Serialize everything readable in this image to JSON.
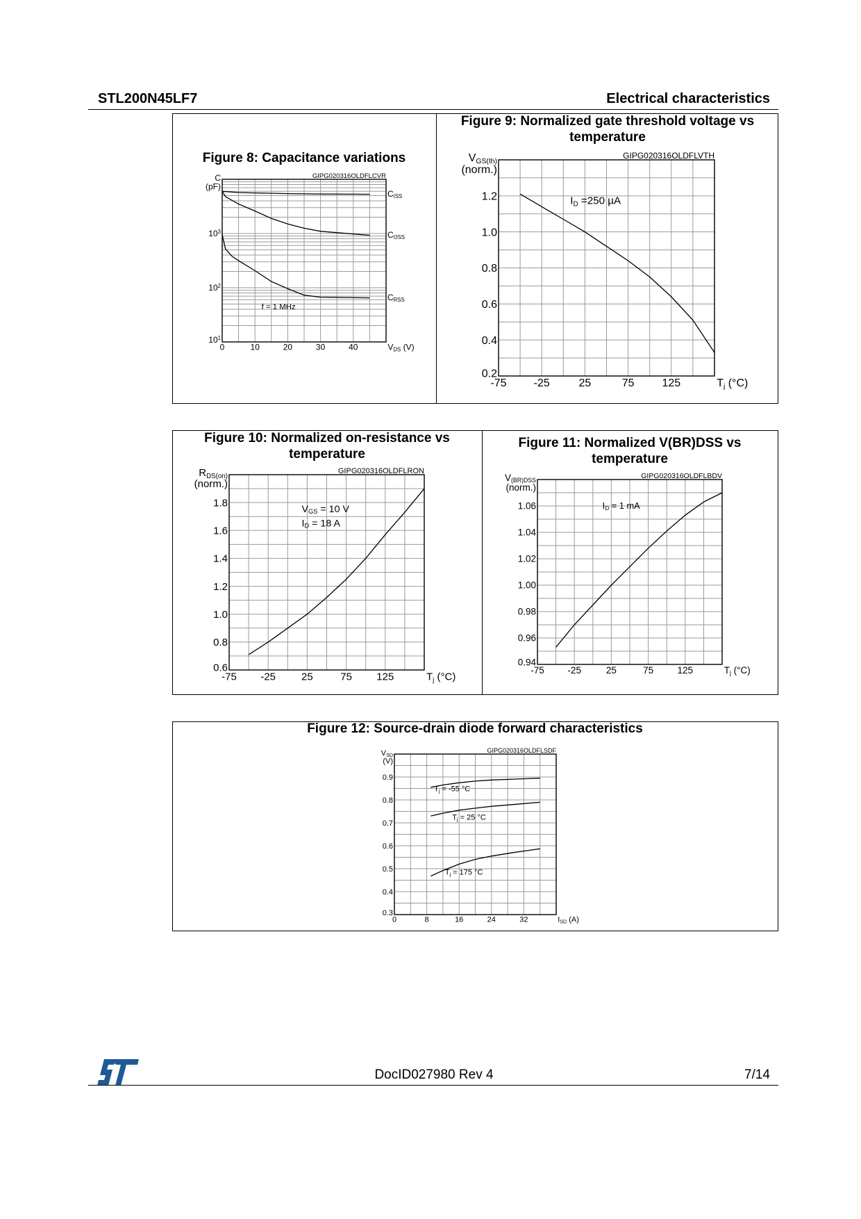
{
  "header": {
    "part_number": "STL200N45LF7",
    "section": "Electrical characteristics"
  },
  "footer": {
    "doc_id": "DocID027980 Rev 4",
    "page": "7/14",
    "logo_text": "ST",
    "brand_color": "#1e5b96"
  },
  "chart_data": [
    {
      "id": "fig8",
      "type": "line",
      "title": "Figure 8: Capacitance variations",
      "code": "GIPG020316OLDFLCVR",
      "xlabel": "V_{DS} (V)",
      "ylabel": [
        "C",
        "(pF)"
      ],
      "xlim": [
        0,
        50
      ],
      "ylim": [
        10,
        10000
      ],
      "yscale": "log",
      "grid": true,
      "xticks": [
        0,
        10,
        20,
        30,
        40
      ],
      "xtick_labels": [
        "0",
        "10",
        "20",
        "30",
        "40"
      ],
      "yticks": [
        10,
        100,
        1000
      ],
      "ytick_labels": [
        "10^{1}",
        "10^{2}",
        "10^{3}"
      ],
      "annotations": [
        "f = 1 MHz"
      ],
      "series": [
        {
          "name": "C_{ISS}",
          "x": [
            0,
            5,
            10,
            20,
            30,
            45
          ],
          "y": [
            6000,
            5700,
            5600,
            5450,
            5350,
            5300
          ]
        },
        {
          "name": "C_{OSS}",
          "x": [
            0,
            1,
            5,
            10,
            15,
            20,
            25,
            30,
            40,
            45
          ],
          "y": [
            6000,
            4800,
            3500,
            2600,
            1900,
            1500,
            1250,
            1100,
            980,
            930
          ]
        },
        {
          "name": "C_{RSS}",
          "x": [
            0,
            0.5,
            1,
            3,
            5,
            10,
            15,
            20,
            25,
            30,
            45
          ],
          "y": [
            950,
            700,
            520,
            380,
            315,
            206,
            130,
            96,
            73,
            67,
            65
          ]
        }
      ]
    },
    {
      "id": "fig9",
      "type": "line",
      "title": "Figure 9: Normalized gate threshold voltage vs temperature",
      "code": "GIPG020316OLDFLVTH",
      "xlabel": "T_{j} (°C)",
      "ylabel": [
        "V_{GS(th)}",
        "(norm.)"
      ],
      "xlim": [
        -75,
        175
      ],
      "ylim": [
        0.2,
        1.4
      ],
      "grid": true,
      "xticks": [
        -75,
        -25,
        25,
        75,
        125
      ],
      "xtick_labels": [
        "-75",
        "-25",
        "25",
        "75",
        "125"
      ],
      "yticks": [
        0.2,
        0.4,
        0.6,
        0.8,
        1.0,
        1.2
      ],
      "ytick_labels": [
        "0.2",
        "0.4",
        "0.6",
        "0.8",
        "1.0",
        "1.2"
      ],
      "annotations": [
        "I_{D} =250 µA"
      ],
      "series": [
        {
          "name": "ID=250µA",
          "x": [
            -50,
            -25,
            0,
            25,
            50,
            75,
            100,
            125,
            150,
            175
          ],
          "y": [
            1.21,
            1.14,
            1.07,
            1.0,
            0.92,
            0.84,
            0.75,
            0.64,
            0.51,
            0.33
          ]
        }
      ]
    },
    {
      "id": "fig10",
      "type": "line",
      "title": "Figure 10: Normalized on-resistance vs temperature",
      "code": "GIPG020316OLDFLRON",
      "xlabel": "T_{j} (°C)",
      "ylabel": [
        "R_{DS(on)}",
        "(norm.)"
      ],
      "xlim": [
        -75,
        175
      ],
      "ylim": [
        0.6,
        2.0
      ],
      "grid": true,
      "xticks": [
        -75,
        -25,
        25,
        75,
        125
      ],
      "xtick_labels": [
        "-75",
        "-25",
        "25",
        "75",
        "125"
      ],
      "yticks": [
        0.6,
        0.8,
        1.0,
        1.2,
        1.4,
        1.6,
        1.8
      ],
      "ytick_labels": [
        "0.6",
        "0.8",
        "1.0",
        "1.2",
        "1.4",
        "1.6",
        "1.8"
      ],
      "annotations": [
        "V_{GS} = 10 V",
        "I_{D} = 18 A"
      ],
      "series": [
        {
          "name": "VGS=10V ID=18A",
          "x": [
            -50,
            -25,
            0,
            25,
            50,
            75,
            100,
            125,
            150,
            175
          ],
          "y": [
            0.71,
            0.8,
            0.9,
            1.0,
            1.12,
            1.25,
            1.4,
            1.57,
            1.73,
            1.9
          ]
        }
      ]
    },
    {
      "id": "fig11",
      "type": "line",
      "title": "Figure 11: Normalized V(BR)DSS vs temperature",
      "code": "GIPG020316OLDFLBDV",
      "xlabel": "T_{j} (°C)",
      "ylabel": [
        "V_{(BR)DSS}",
        "(norm.)"
      ],
      "xlim": [
        -75,
        175
      ],
      "ylim": [
        0.94,
        1.08
      ],
      "grid": true,
      "xticks": [
        -75,
        -25,
        25,
        75,
        125
      ],
      "xtick_labels": [
        "-75",
        "-25",
        "25",
        "75",
        "125"
      ],
      "yticks": [
        0.94,
        0.96,
        0.98,
        1.0,
        1.02,
        1.04,
        1.06
      ],
      "ytick_labels": [
        "0.94",
        "0.96",
        "0.98",
        "1.00",
        "1.02",
        "1.04",
        "1.06"
      ],
      "annotations": [
        "I_{D} = 1 mA"
      ],
      "series": [
        {
          "name": "ID=1mA",
          "x": [
            -50,
            -25,
            0,
            25,
            50,
            75,
            100,
            125,
            150,
            175
          ],
          "y": [
            0.953,
            0.97,
            0.985,
            1.0,
            1.014,
            1.028,
            1.041,
            1.053,
            1.063,
            1.07
          ]
        }
      ]
    },
    {
      "id": "fig12",
      "type": "line",
      "title": "Figure 12: Source-drain diode forward characteristics",
      "code": "GIPG020316OLDFLSDF",
      "xlabel": "I_{SD} (A)",
      "ylabel": [
        "V_{SD}",
        "(V)"
      ],
      "xlim": [
        0,
        40
      ],
      "ylim": [
        0.3,
        1.0
      ],
      "grid": true,
      "xticks": [
        0,
        8,
        16,
        24,
        32
      ],
      "xtick_labels": [
        "0",
        "8",
        "16",
        "24",
        "32"
      ],
      "yticks": [
        0.3,
        0.4,
        0.5,
        0.6,
        0.7,
        0.8,
        0.9
      ],
      "ytick_labels": [
        "0.3",
        "0.4",
        "0.5",
        "0.6",
        "0.7",
        "0.8",
        "0.9"
      ],
      "annotations": [],
      "series": [
        {
          "name": "T_{j} = -55 °C",
          "x": [
            9,
            12,
            16,
            20,
            24,
            30,
            36
          ],
          "y": [
            0.855,
            0.865,
            0.875,
            0.882,
            0.887,
            0.891,
            0.895
          ]
        },
        {
          "name": "T_{j} = 25 °C",
          "x": [
            9,
            12,
            16,
            20,
            24,
            30,
            36
          ],
          "y": [
            0.73,
            0.742,
            0.755,
            0.764,
            0.772,
            0.781,
            0.79
          ]
        },
        {
          "name": "T_{j} = 175 °C",
          "x": [
            9,
            12,
            16,
            20,
            24,
            30,
            36
          ],
          "y": [
            0.468,
            0.492,
            0.52,
            0.541,
            0.555,
            0.572,
            0.587
          ]
        }
      ]
    }
  ]
}
